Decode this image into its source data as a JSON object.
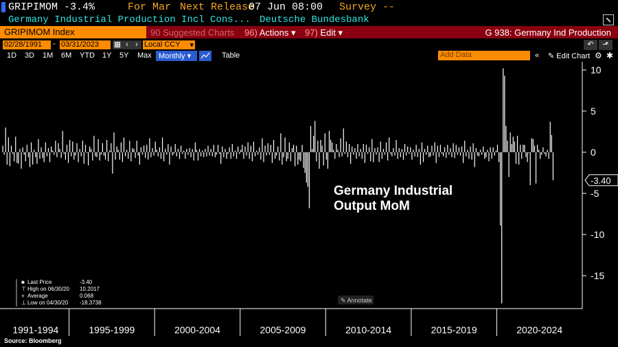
{
  "header": {
    "ticker_value": "GRIPIMOM -3.4%",
    "period_label": "For Mar",
    "next_release_label": "Next Release",
    "next_release_value": "07 Jun 08:00",
    "survey_label": "Survey --",
    "series_name": "Germany Industrial Production Incl Cons...",
    "source_name": "Deutsche Bundesbank"
  },
  "toolbar": {
    "ticker": "GRIPIMOM Index",
    "suggested_charts": "Suggested Charts",
    "suggested_charts_num": "90",
    "actions": "Actions",
    "actions_num": "96)",
    "edit": "Edit",
    "edit_num": "97)",
    "title": "G 938: Germany Ind Production"
  },
  "range": {
    "start_date": "02/28/1991",
    "end_date": "03/31/2023",
    "currency": "Local CCY"
  },
  "periods": [
    "1D",
    "3D",
    "1M",
    "6M",
    "YTD",
    "1Y",
    "5Y",
    "Max"
  ],
  "frequency": "Monthly",
  "table_label": "Table",
  "add_data_placeholder": "Add Data",
  "edit_chart_label": "Edit Chart",
  "annotation_text": "Germany Industrial Output MoM",
  "annotate_label": "Annotate",
  "last_value_tag": "-3.40",
  "legend": {
    "last_price_label": "Last Price",
    "last_price_value": "-3.40",
    "high_label": "High on 06/30/20",
    "high_value": "10.2017",
    "average_label": "Average",
    "average_value": "0.068",
    "low_label": "Low on 04/30/20",
    "low_value": "-18.3738"
  },
  "colors": {
    "orange": "#ff8c00",
    "cyan": "#2ee6e6",
    "bar": "#ffffff",
    "toolbar_bg": "#8a0010"
  },
  "chart_data": {
    "type": "bar",
    "title": "",
    "ylim": [
      -19,
      11
    ],
    "y_ticks": [
      10,
      5,
      0,
      -5,
      -10,
      -15
    ],
    "x_groups": [
      "1991-1994",
      "1995-1999",
      "2000-2004",
      "2005-2009",
      "2010-2014",
      "2015-2019",
      "2020-2024"
    ],
    "series": [
      {
        "name": "Germany Industrial Output MoM",
        "start": "1991-02",
        "values": [
          0.8,
          -0.3,
          3.0,
          -1.5,
          1.8,
          -1.7,
          0.8,
          -0.2,
          -1.1,
          1.9,
          -1.3,
          -1.4,
          0.4,
          -2.0,
          0.6,
          -0.3,
          -1.1,
          0.9,
          -0.6,
          -1.8,
          1.2,
          -1.5,
          0.3,
          -0.6,
          -1.4,
          1.6,
          -0.8,
          0.6,
          -0.7,
          -1.2,
          1.2,
          -0.5,
          0.5,
          -1.2,
          0.7,
          0.2,
          -0.3,
          1.4,
          -0.6,
          1.1,
          0.4,
          -0.7,
          2.6,
          -0.2,
          -0.9,
          0.9,
          -1.3,
          1.5,
          -0.5,
          1.3,
          -0.9,
          -0.4,
          1.1,
          -1.2,
          0.4,
          -0.5,
          1.4,
          -1.4,
          0.9,
          -0.1,
          -1.6,
          0.7,
          0.4,
          -1.0,
          2.0,
          -0.5,
          -0.6,
          1.6,
          -1.0,
          -0.3,
          1.1,
          -0.4,
          -0.9,
          1.5,
          -1.1,
          0.2,
          1.1,
          -2.6,
          2.4,
          -0.9,
          0.7,
          0.3,
          -0.9,
          1.2,
          -1.2,
          1.8,
          -0.5,
          0.3,
          -0.8,
          1.4,
          -1.1,
          0.5,
          0.4,
          -0.7,
          1.4,
          -0.4,
          -1.5,
          0.6,
          -0.3,
          0.8,
          -0.7,
          0.9,
          -0.9,
          1.7,
          -0.6,
          0.5,
          -0.4,
          1.3,
          0.3,
          -0.5,
          0.6,
          -0.8,
          1.8,
          -1.1,
          0.4,
          -0.3,
          1.0,
          -1.5,
          0.7,
          -0.4,
          -0.2,
          1.0,
          -0.5,
          0.4,
          -0.8,
          0.8,
          -0.2,
          0.2,
          -0.8,
          0.4,
          -0.3,
          0.5,
          -0.6,
          0.4,
          -1.0,
          1.2,
          0.3,
          -1.0,
          0.4,
          -0.5,
          0.2,
          -0.6,
          0.4,
          -0.5,
          0.8,
          -0.4,
          0.4,
          -0.5,
          0.9,
          -0.6,
          -0.3,
          0.9,
          -0.2,
          -1.4,
          0.7,
          -0.6,
          0.4,
          -0.8,
          -0.2,
          0.6,
          -0.8,
          1.0,
          -0.5,
          0.2,
          -0.8,
          0.7,
          -0.2,
          0.3,
          0.9,
          -0.8,
          0.7,
          -0.4,
          1.2,
          -0.8,
          0.8,
          -1.1,
          1.3,
          -0.5,
          0.2,
          -0.3,
          0.6,
          -0.9,
          1.7,
          -1.2,
          0.8,
          -0.4,
          1.1,
          -0.3,
          0.9,
          -1.3,
          1.5,
          -0.8,
          -0.4,
          0.7,
          -1.0,
          2.3,
          -1.5,
          -0.6,
          1.8,
          -1.1,
          -0.8,
          1.2,
          -1.1,
          0.5,
          0.9,
          -1.7,
          0.8,
          -1.5,
          -0.9,
          -1.1,
          0.9,
          -1.9,
          -2.5,
          -3.7,
          -4.2,
          -6.8,
          3.2,
          0.4,
          2.0,
          3.8,
          -1.1,
          1.4,
          -2.0,
          1.5,
          0.8,
          -1.6,
          2.3,
          -0.9,
          -2.0,
          2.6,
          1.5,
          1.2,
          0.3,
          -0.8,
          1.0,
          0.3,
          -0.6,
          1.7,
          -0.5,
          2.9,
          -0.2,
          1.3,
          -0.6,
          1.0,
          -1.4,
          0.7,
          -0.3,
          0.5,
          -0.8,
          1.0,
          -0.5,
          0.4,
          -0.8,
          1.0,
          -1.3,
          0.9,
          -0.2,
          0.6,
          -1.1,
          1.6,
          -1.2,
          0.5,
          -0.3,
          0.6,
          -1.2,
          1.3,
          -0.8,
          0.4,
          -0.3,
          1.2,
          -1.0,
          1.8,
          -0.2,
          -0.5,
          0.5,
          -0.4,
          1.5,
          -0.8,
          0.5,
          -0.6,
          0.4,
          -0.9,
          1.0,
          -0.4,
          0.7,
          -0.2,
          0.6,
          -0.9,
          0.3,
          -0.5,
          0.9,
          -0.6,
          0.4,
          -1.5,
          1.2,
          -1.2,
          0.4,
          -0.3,
          0.8,
          -0.6,
          -0.5,
          0.8,
          -0.4,
          1.2,
          -1.3,
          0.8,
          -0.6,
          0.9,
          -0.2,
          -0.5,
          0.6,
          -0.7,
          0.9,
          -0.3,
          0.5,
          -0.6,
          1.1,
          -0.7,
          0.9,
          -0.3,
          0.6,
          -0.4,
          0.7,
          -1.3,
          1.4,
          -0.5,
          0.3,
          -0.8,
          0.7,
          -0.9,
          1.1,
          -1.8,
          0.5,
          -0.4,
          -0.5,
          0.3,
          -0.3,
          0.7,
          -0.8,
          -0.6,
          0.3,
          -1.1,
          0.6,
          -0.8,
          0.6,
          -0.4,
          0.2,
          0.9,
          -1.2,
          -8.9,
          -18.37,
          10.2,
          9.3,
          3.2,
          1.4,
          -3.0,
          2.4,
          1.0,
          1.9,
          1.3,
          -1.4,
          2.0,
          -1.5,
          0.9,
          -0.8,
          0.9,
          0.9,
          -0.6,
          -1.2,
          -0.1,
          -4.0,
          1.7,
          1.6,
          0.8,
          -3.8,
          0.9,
          0.3,
          -0.8,
          -0.3,
          0.6,
          -0.2,
          -0.5,
          0.3,
          -0.8,
          3.7,
          2.1,
          -3.4
        ]
      }
    ]
  }
}
